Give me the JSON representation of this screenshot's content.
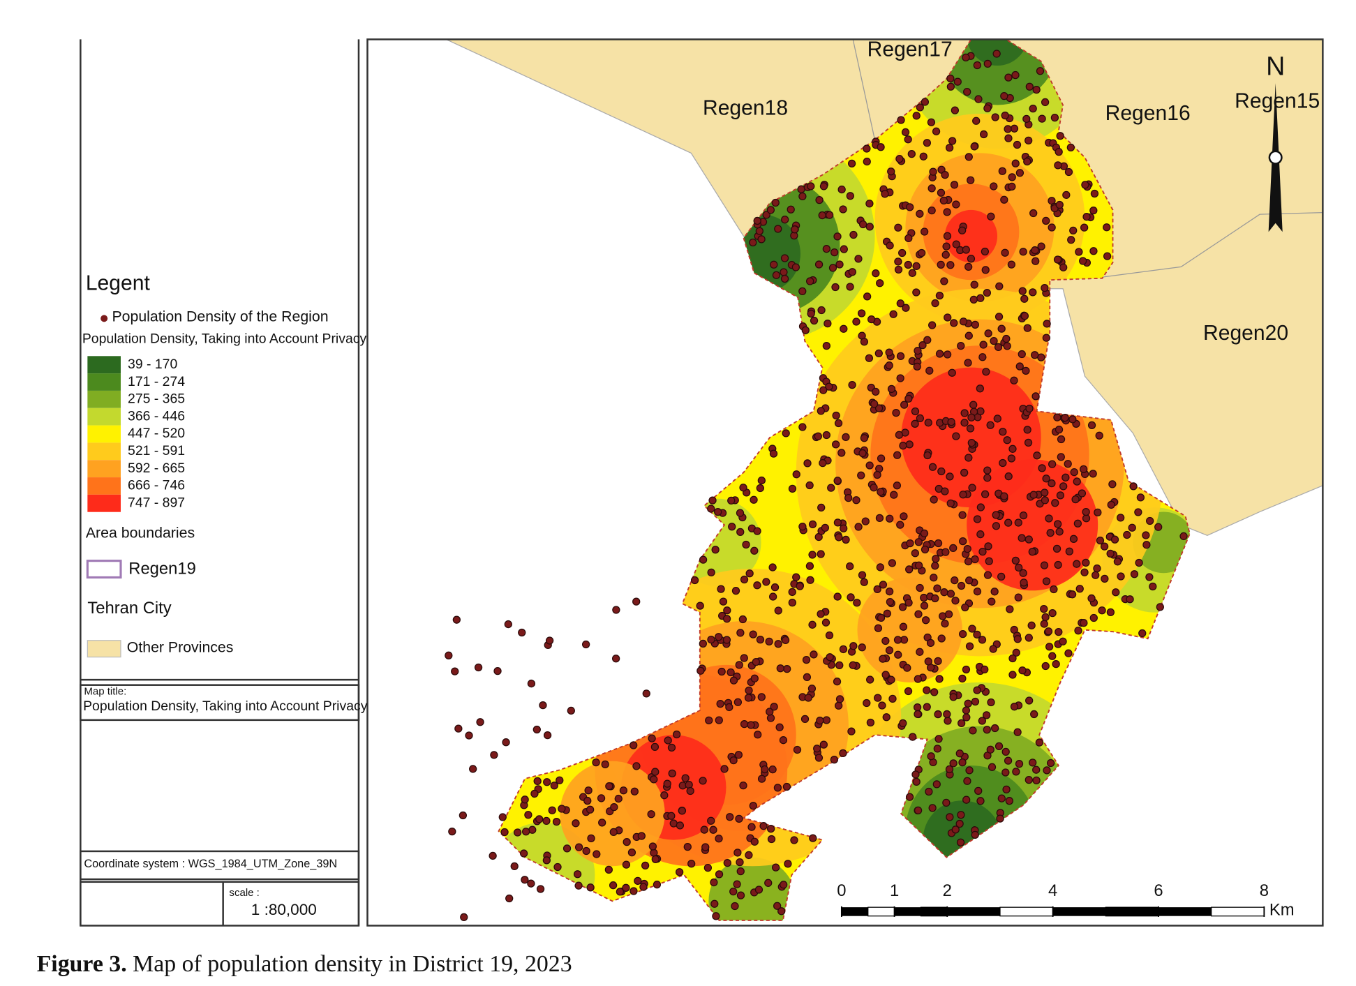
{
  "map": {
    "regions": [
      "Regen17",
      "Regen18",
      "Regen16",
      "Regen15",
      "Regen20"
    ],
    "north": "N",
    "scale_bar": {
      "ticks": [
        0,
        1,
        2,
        4,
        6,
        8
      ],
      "unit": "Km"
    }
  },
  "legend": {
    "title": "Legent",
    "points_label": "Population Density of the Region",
    "raster_title": "Population Density, Taking into Account Privacy",
    "classes": [
      {
        "label": "39 - 170",
        "color": "#2c6a1f"
      },
      {
        "label": "171 - 274",
        "color": "#4c8a1e"
      },
      {
        "label": "275 - 365",
        "color": "#80ad22"
      },
      {
        "label": "366 - 446",
        "color": "#c3d92e"
      },
      {
        "label": "447 - 520",
        "color": "#fff200"
      },
      {
        "label": "521 - 591",
        "color": "#ffcb1c"
      },
      {
        "label": "592 - 665",
        "color": "#ffa220"
      },
      {
        "label": "666 - 746",
        "color": "#ff731a"
      },
      {
        "label": "747 - 897",
        "color": "#fe2b1a"
      }
    ],
    "boundaries_title": "Area boundaries",
    "boundary_label": "Regen19",
    "city_title": "Tehran City",
    "provinces_label": "Other Provinces"
  },
  "map_title": {
    "label": "Map title:",
    "text": "Population Density, Taking into Account Privacy"
  },
  "coordinate_system": "Coordinate system : WGS_1984_UTM_Zone_39N",
  "scale": {
    "label": "scale :",
    "value": "1 :80,000"
  },
  "caption": {
    "label": "Figure 3.",
    "text": "Map of population density in District 19, 2023"
  }
}
